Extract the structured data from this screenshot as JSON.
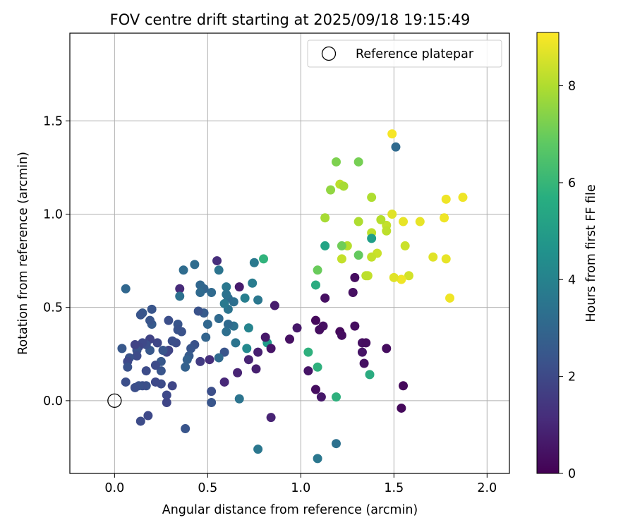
{
  "chart_data": {
    "type": "scatter",
    "title": "FOV centre drift starting at 2025/09/18 19:15:49",
    "xlabel": "Angular distance from reference (arcmin)",
    "ylabel": "Rotation from reference (arcmin)",
    "xlim": [
      -0.24,
      2.12
    ],
    "ylim": [
      -0.39,
      1.97
    ],
    "xticks": [
      "0.0",
      "0.5",
      "1.0",
      "1.5",
      "2.0"
    ],
    "yticks": [
      "0.0",
      "0.5",
      "1.0",
      "1.5"
    ],
    "grid": true,
    "legend": {
      "position": "top-right",
      "entries": [
        "Reference platepar"
      ]
    },
    "reference_point": {
      "x": 0.0,
      "y": 0.0
    },
    "colorbar": {
      "label": "Hours from first FF file",
      "colormap": "viridis",
      "range": [
        0,
        9.1
      ],
      "ticks": [
        "0",
        "2",
        "4",
        "6",
        "8"
      ]
    },
    "points": [
      {
        "x": 1.49,
        "y": 1.43,
        "c": 9.0
      },
      {
        "x": 1.87,
        "y": 1.09,
        "c": 8.9
      },
      {
        "x": 1.78,
        "y": 1.08,
        "c": 8.9
      },
      {
        "x": 1.77,
        "y": 0.98,
        "c": 8.9
      },
      {
        "x": 1.64,
        "y": 0.96,
        "c": 8.8
      },
      {
        "x": 1.55,
        "y": 0.96,
        "c": 8.8
      },
      {
        "x": 1.49,
        "y": 1.0,
        "c": 8.7
      },
      {
        "x": 1.71,
        "y": 0.77,
        "c": 8.7
      },
      {
        "x": 1.78,
        "y": 0.76,
        "c": 8.8
      },
      {
        "x": 1.8,
        "y": 0.55,
        "c": 8.9
      },
      {
        "x": 1.58,
        "y": 0.67,
        "c": 8.5
      },
      {
        "x": 1.56,
        "y": 0.83,
        "c": 8.4
      },
      {
        "x": 1.54,
        "y": 0.65,
        "c": 8.9
      },
      {
        "x": 1.5,
        "y": 0.66,
        "c": 8.7
      },
      {
        "x": 1.46,
        "y": 0.94,
        "c": 8.3
      },
      {
        "x": 1.46,
        "y": 0.91,
        "c": 8.2
      },
      {
        "x": 1.41,
        "y": 0.79,
        "c": 8.4
      },
      {
        "x": 1.38,
        "y": 0.77,
        "c": 8.3
      },
      {
        "x": 1.38,
        "y": 0.9,
        "c": 8.2
      },
      {
        "x": 1.43,
        "y": 0.97,
        "c": 8.1
      },
      {
        "x": 1.36,
        "y": 0.67,
        "c": 8.3
      },
      {
        "x": 1.35,
        "y": 0.67,
        "c": 8.2
      },
      {
        "x": 1.38,
        "y": 1.09,
        "c": 8.0
      },
      {
        "x": 1.31,
        "y": 0.96,
        "c": 8.0
      },
      {
        "x": 1.25,
        "y": 0.83,
        "c": 8.1
      },
      {
        "x": 1.22,
        "y": 0.76,
        "c": 8.3
      },
      {
        "x": 1.21,
        "y": 1.16,
        "c": 8.2
      },
      {
        "x": 1.23,
        "y": 1.15,
        "c": 7.9
      },
      {
        "x": 1.13,
        "y": 0.98,
        "c": 7.9
      },
      {
        "x": 1.16,
        "y": 1.13,
        "c": 7.6
      },
      {
        "x": 1.19,
        "y": 1.28,
        "c": 7.3
      },
      {
        "x": 1.31,
        "y": 1.28,
        "c": 7.2
      },
      {
        "x": 1.22,
        "y": 0.83,
        "c": 7.1
      },
      {
        "x": 1.31,
        "y": 0.78,
        "c": 6.9
      },
      {
        "x": 1.09,
        "y": 0.7,
        "c": 7.0
      },
      {
        "x": 0.8,
        "y": 0.76,
        "c": 5.9
      },
      {
        "x": 1.13,
        "y": 0.83,
        "c": 5.3
      },
      {
        "x": 1.38,
        "y": 0.87,
        "c": 5.1
      },
      {
        "x": 1.08,
        "y": 0.62,
        "c": 5.6
      },
      {
        "x": 1.04,
        "y": 0.26,
        "c": 5.8
      },
      {
        "x": 1.09,
        "y": 0.18,
        "c": 5.8
      },
      {
        "x": 1.19,
        "y": 0.02,
        "c": 5.8
      },
      {
        "x": 1.37,
        "y": 0.14,
        "c": 5.6
      },
      {
        "x": 0.82,
        "y": 0.31,
        "c": 5.0
      },
      {
        "x": 1.51,
        "y": 1.36,
        "c": 3.1
      },
      {
        "x": 1.54,
        "y": -0.04,
        "c": 0.2
      },
      {
        "x": 1.55,
        "y": 0.08,
        "c": 0.2
      },
      {
        "x": 1.46,
        "y": 0.28,
        "c": 0.3
      },
      {
        "x": 1.33,
        "y": 0.31,
        "c": 0.4
      },
      {
        "x": 1.35,
        "y": 0.31,
        "c": 0.3
      },
      {
        "x": 1.33,
        "y": 0.26,
        "c": 0.5
      },
      {
        "x": 1.34,
        "y": 0.2,
        "c": 0.4
      },
      {
        "x": 1.29,
        "y": 0.66,
        "c": 0.3
      },
      {
        "x": 1.28,
        "y": 0.58,
        "c": 0.4
      },
      {
        "x": 1.29,
        "y": 0.4,
        "c": 0.3
      },
      {
        "x": 1.21,
        "y": 0.37,
        "c": 0.2
      },
      {
        "x": 1.22,
        "y": 0.35,
        "c": 0.3
      },
      {
        "x": 1.13,
        "y": 0.55,
        "c": 0.4
      },
      {
        "x": 1.08,
        "y": 0.43,
        "c": 0.2
      },
      {
        "x": 1.12,
        "y": 0.4,
        "c": 0.4
      },
      {
        "x": 1.1,
        "y": 0.38,
        "c": 0.3
      },
      {
        "x": 1.04,
        "y": 0.16,
        "c": 0.5
      },
      {
        "x": 1.08,
        "y": 0.06,
        "c": 0.3
      },
      {
        "x": 1.11,
        "y": 0.02,
        "c": 0.6
      },
      {
        "x": 0.98,
        "y": 0.39,
        "c": 0.6
      },
      {
        "x": 0.94,
        "y": 0.33,
        "c": 0.4
      },
      {
        "x": 0.86,
        "y": 0.51,
        "c": 0.7
      },
      {
        "x": 0.84,
        "y": 0.28,
        "c": 0.5
      },
      {
        "x": 0.81,
        "y": 0.34,
        "c": 0.6
      },
      {
        "x": 0.84,
        "y": -0.09,
        "c": 0.9
      },
      {
        "x": 0.77,
        "y": 0.26,
        "c": 0.8
      },
      {
        "x": 0.76,
        "y": 0.17,
        "c": 0.8
      },
      {
        "x": 0.72,
        "y": 0.22,
        "c": 0.9
      },
      {
        "x": 0.67,
        "y": 0.61,
        "c": 0.7
      },
      {
        "x": 0.66,
        "y": 0.15,
        "c": 0.9
      },
      {
        "x": 0.59,
        "y": 0.1,
        "c": 1.0
      },
      {
        "x": 0.55,
        "y": 0.75,
        "c": 1.2
      },
      {
        "x": 1.09,
        "y": -0.31,
        "c": 3.6
      },
      {
        "x": 1.19,
        "y": -0.23,
        "c": 3.4
      },
      {
        "x": 0.77,
        "y": -0.26,
        "c": 3.6
      },
      {
        "x": 0.75,
        "y": 0.74,
        "c": 3.7
      },
      {
        "x": 0.74,
        "y": 0.63,
        "c": 3.8
      },
      {
        "x": 0.77,
        "y": 0.54,
        "c": 3.6
      },
      {
        "x": 0.72,
        "y": 0.39,
        "c": 4.1
      },
      {
        "x": 0.71,
        "y": 0.28,
        "c": 4.3
      },
      {
        "x": 0.7,
        "y": 0.55,
        "c": 3.9
      },
      {
        "x": 0.67,
        "y": 0.01,
        "c": 3.5
      },
      {
        "x": 0.65,
        "y": 0.31,
        "c": 3.5
      },
      {
        "x": 0.64,
        "y": 0.53,
        "c": 3.3
      },
      {
        "x": 0.64,
        "y": 0.4,
        "c": 3.4
      },
      {
        "x": 0.61,
        "y": 0.55,
        "c": 3.2
      },
      {
        "x": 0.61,
        "y": 0.49,
        "c": 3.5
      },
      {
        "x": 0.61,
        "y": 0.41,
        "c": 3.1
      },
      {
        "x": 0.6,
        "y": 0.61,
        "c": 3.6
      },
      {
        "x": 0.6,
        "y": 0.57,
        "c": 3.4
      },
      {
        "x": 0.59,
        "y": 0.52,
        "c": 3.7
      },
      {
        "x": 0.6,
        "y": 0.37,
        "c": 3.3
      },
      {
        "x": 0.59,
        "y": 0.26,
        "c": 2.4
      },
      {
        "x": 0.56,
        "y": 0.7,
        "c": 3.5
      },
      {
        "x": 0.56,
        "y": 0.44,
        "c": 3.1
      },
      {
        "x": 0.56,
        "y": 0.23,
        "c": 3.1
      },
      {
        "x": 0.52,
        "y": 0.58,
        "c": 3.1
      },
      {
        "x": 0.52,
        "y": 0.05,
        "c": 2.2
      },
      {
        "x": 0.52,
        "y": -0.01,
        "c": 2.4
      },
      {
        "x": 0.5,
        "y": 0.41,
        "c": 3.0
      },
      {
        "x": 0.49,
        "y": 0.34,
        "c": 2.9
      },
      {
        "x": 0.48,
        "y": 0.6,
        "c": 2.9
      },
      {
        "x": 0.48,
        "y": 0.47,
        "c": 2.6
      },
      {
        "x": 0.46,
        "y": 0.62,
        "c": 3.0
      },
      {
        "x": 0.46,
        "y": 0.58,
        "c": 3.1
      },
      {
        "x": 0.45,
        "y": 0.48,
        "c": 2.3
      },
      {
        "x": 0.51,
        "y": 0.22,
        "c": 1.2
      },
      {
        "x": 0.46,
        "y": 0.21,
        "c": 1.6
      },
      {
        "x": 0.43,
        "y": 0.73,
        "c": 3.2
      },
      {
        "x": 0.43,
        "y": 0.3,
        "c": 2.3
      },
      {
        "x": 0.41,
        "y": 0.28,
        "c": 2.4
      },
      {
        "x": 0.4,
        "y": 0.24,
        "c": 2.6
      },
      {
        "x": 0.39,
        "y": 0.22,
        "c": 2.8
      },
      {
        "x": 0.38,
        "y": 0.18,
        "c": 2.8
      },
      {
        "x": 0.38,
        "y": -0.15,
        "c": 2.4
      },
      {
        "x": 0.37,
        "y": 0.7,
        "c": 3.2
      },
      {
        "x": 0.36,
        "y": 0.37,
        "c": 2.3
      },
      {
        "x": 0.35,
        "y": 0.6,
        "c": 1.1
      },
      {
        "x": 0.35,
        "y": 0.56,
        "c": 3.4
      },
      {
        "x": 0.34,
        "y": 0.41,
        "c": 2.4
      },
      {
        "x": 0.34,
        "y": 0.38,
        "c": 2.3
      },
      {
        "x": 0.33,
        "y": 0.31,
        "c": 2.1
      },
      {
        "x": 0.31,
        "y": 0.32,
        "c": 2.2
      },
      {
        "x": 0.31,
        "y": 0.08,
        "c": 1.9
      },
      {
        "x": 0.29,
        "y": 0.43,
        "c": 2.2
      },
      {
        "x": 0.29,
        "y": 0.27,
        "c": 1.8
      },
      {
        "x": 0.28,
        "y": 0.26,
        "c": 1.9
      },
      {
        "x": 0.28,
        "y": 0.03,
        "c": 2.0
      },
      {
        "x": 0.28,
        "y": -0.01,
        "c": 1.9
      },
      {
        "x": 0.26,
        "y": 0.27,
        "c": 2.4
      },
      {
        "x": 0.25,
        "y": 0.21,
        "c": 2.5
      },
      {
        "x": 0.25,
        "y": 0.16,
        "c": 2.4
      },
      {
        "x": 0.25,
        "y": 0.09,
        "c": 2.1
      },
      {
        "x": 0.23,
        "y": 0.31,
        "c": 1.9
      },
      {
        "x": 0.22,
        "y": 0.19,
        "c": 2.1
      },
      {
        "x": 0.22,
        "y": 0.1,
        "c": 2.0
      },
      {
        "x": 0.2,
        "y": 0.49,
        "c": 2.4
      },
      {
        "x": 0.2,
        "y": 0.41,
        "c": 2.6
      },
      {
        "x": 0.19,
        "y": 0.43,
        "c": 2.4
      },
      {
        "x": 0.19,
        "y": 0.33,
        "c": 1.8
      },
      {
        "x": 0.19,
        "y": 0.27,
        "c": 2.5
      },
      {
        "x": 0.18,
        "y": -0.08,
        "c": 2.0
      },
      {
        "x": 0.17,
        "y": 0.3,
        "c": 2.2
      },
      {
        "x": 0.17,
        "y": 0.16,
        "c": 2.1
      },
      {
        "x": 0.17,
        "y": 0.08,
        "c": 2.3
      },
      {
        "x": 0.15,
        "y": 0.47,
        "c": 2.5
      },
      {
        "x": 0.15,
        "y": 0.31,
        "c": 2.0
      },
      {
        "x": 0.15,
        "y": 0.08,
        "c": 2.2
      },
      {
        "x": 0.14,
        "y": 0.46,
        "c": 2.4
      },
      {
        "x": 0.14,
        "y": -0.11,
        "c": 2.1
      },
      {
        "x": 0.13,
        "y": 0.29,
        "c": 1.9
      },
      {
        "x": 0.13,
        "y": 0.08,
        "c": 2.3
      },
      {
        "x": 0.12,
        "y": 0.27,
        "c": 2.3
      },
      {
        "x": 0.12,
        "y": 0.24,
        "c": 2.1
      },
      {
        "x": 0.11,
        "y": 0.3,
        "c": 1.8
      },
      {
        "x": 0.11,
        "y": 0.07,
        "c": 2.2
      },
      {
        "x": 0.08,
        "y": 0.23,
        "c": 2.3
      },
      {
        "x": 0.07,
        "y": 0.21,
        "c": 2.0
      },
      {
        "x": 0.07,
        "y": 0.18,
        "c": 2.3
      },
      {
        "x": 0.06,
        "y": 0.6,
        "c": 3.0
      },
      {
        "x": 0.06,
        "y": 0.1,
        "c": 2.2
      },
      {
        "x": 0.04,
        "y": 0.28,
        "c": 2.5
      }
    ]
  }
}
